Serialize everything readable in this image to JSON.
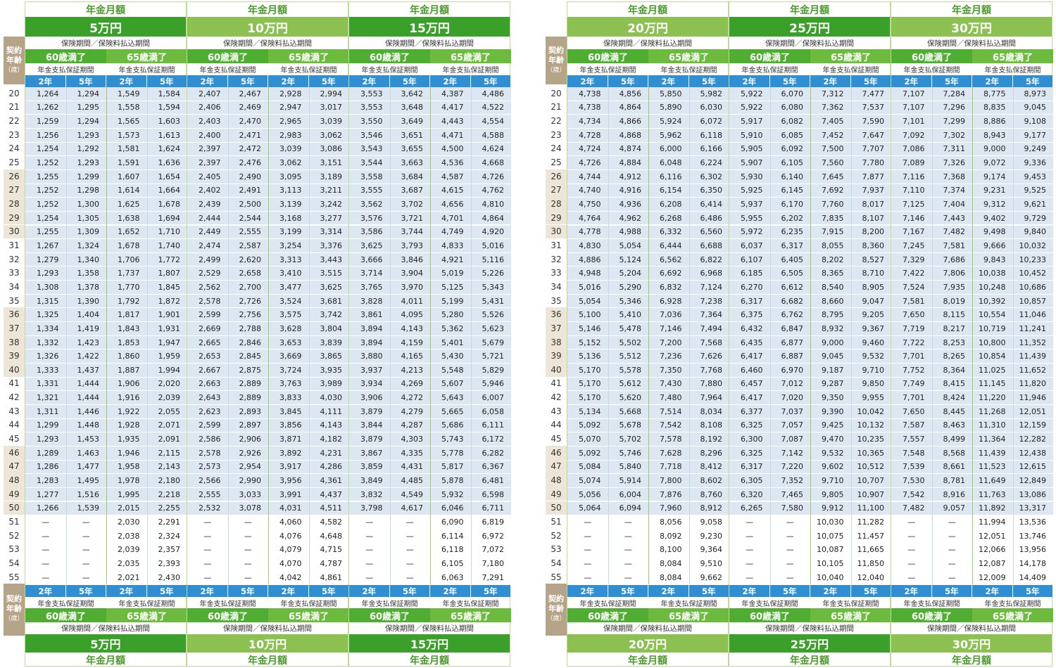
{
  "labels": {
    "header_top": "年金月額",
    "age_line1": "契約",
    "age_line2": "年齢",
    "age_line3": "（歳）",
    "insurance_period": "保険期間／保険料払込期間",
    "age60": "60歳満了",
    "age65": "65歳満了",
    "guarantee": "年金支払保証期間",
    "yr2": "2年",
    "yr5": "5年",
    "dash": "—"
  },
  "amounts": [
    "5万円",
    "10万円",
    "15万円",
    "20万円",
    "25万円",
    "30万円"
  ],
  "ages": [
    20,
    21,
    22,
    23,
    24,
    25,
    26,
    27,
    28,
    29,
    30,
    31,
    32,
    33,
    34,
    35,
    36,
    37,
    38,
    39,
    40,
    41,
    42,
    43,
    44,
    45,
    46,
    47,
    48,
    49,
    50,
    51,
    52,
    53,
    54,
    55
  ],
  "chart_data": {
    "type": "table",
    "columns_per_amount": [
      "60歳満了 2年",
      "60歳満了 5年",
      "65歳満了 2年",
      "65歳満了 5年"
    ],
    "rows": [
      [
        "1,264",
        "1,294",
        "1,549",
        "1,584",
        "2,407",
        "2,467",
        "2,928",
        "2,994",
        "3,553",
        "3,642",
        "4,387",
        "4,486",
        "4,738",
        "4,856",
        "5,850",
        "5,982",
        "5,922",
        "6,070",
        "7,312",
        "7,477",
        "7,107",
        "7,284",
        "8,775",
        "8,973"
      ],
      [
        "1,262",
        "1,295",
        "1,558",
        "1,594",
        "2,406",
        "2,469",
        "2,947",
        "3,017",
        "3,553",
        "3,648",
        "4,417",
        "4,522",
        "4,738",
        "4,864",
        "5,890",
        "6,030",
        "5,922",
        "6,080",
        "7,362",
        "7,537",
        "7,107",
        "7,296",
        "8,835",
        "9,045"
      ],
      [
        "1,259",
        "1,294",
        "1,565",
        "1,603",
        "2,403",
        "2,470",
        "2,965",
        "3,039",
        "3,550",
        "3,649",
        "4,443",
        "4,554",
        "4,734",
        "4,866",
        "5,924",
        "6,072",
        "5,917",
        "6,082",
        "7,405",
        "7,590",
        "7,101",
        "7,299",
        "8,886",
        "9,108"
      ],
      [
        "1,256",
        "1,293",
        "1,573",
        "1,613",
        "2,400",
        "2,471",
        "2,983",
        "3,062",
        "3,546",
        "3,651",
        "4,471",
        "4,588",
        "4,728",
        "4,868",
        "5,962",
        "6,118",
        "5,910",
        "6,085",
        "7,452",
        "7,647",
        "7,092",
        "7,302",
        "8,943",
        "9,177"
      ],
      [
        "1,254",
        "1,292",
        "1,581",
        "1,624",
        "2,397",
        "2,472",
        "3,039",
        "3,086",
        "3,543",
        "3,655",
        "4,500",
        "4,624",
        "4,724",
        "4,874",
        "6,000",
        "6,166",
        "5,905",
        "6,092",
        "7,500",
        "7,707",
        "7,086",
        "7,311",
        "9,000",
        "9,249"
      ],
      [
        "1,252",
        "1,293",
        "1,591",
        "1,636",
        "2,397",
        "2,476",
        "3,062",
        "3,151",
        "3,544",
        "3,663",
        "4,536",
        "4,668",
        "4,726",
        "4,884",
        "6,048",
        "6,224",
        "5,907",
        "6,105",
        "7,560",
        "7,780",
        "7,089",
        "7,326",
        "9,072",
        "9,336"
      ],
      [
        "1,255",
        "1,299",
        "1,607",
        "1,654",
        "2,405",
        "2,490",
        "3,095",
        "3,189",
        "3,558",
        "3,684",
        "4,587",
        "4,726",
        "4,744",
        "4,912",
        "6,116",
        "6,302",
        "5,930",
        "6,140",
        "7,645",
        "7,877",
        "7,116",
        "7,368",
        "9,174",
        "9,453"
      ],
      [
        "1,252",
        "1,298",
        "1,614",
        "1,664",
        "2,402",
        "2,491",
        "3,113",
        "3,211",
        "3,555",
        "3,687",
        "4,615",
        "4,762",
        "4,740",
        "4,916",
        "6,154",
        "6,350",
        "5,925",
        "6,145",
        "7,692",
        "7,937",
        "7,110",
        "7,374",
        "9,231",
        "9,525"
      ],
      [
        "1,252",
        "1,300",
        "1,625",
        "1,678",
        "2,439",
        "2,500",
        "3,139",
        "3,242",
        "3,562",
        "3,702",
        "4,656",
        "4,810",
        "4,750",
        "4,936",
        "6,208",
        "6,414",
        "5,937",
        "6,170",
        "7,760",
        "8,017",
        "7,125",
        "7,404",
        "9,312",
        "9,621"
      ],
      [
        "1,254",
        "1,305",
        "1,638",
        "1,694",
        "2,444",
        "2,544",
        "3,168",
        "3,277",
        "3,576",
        "3,721",
        "4,701",
        "4,864",
        "4,764",
        "4,962",
        "6,268",
        "6,486",
        "5,955",
        "6,202",
        "7,835",
        "8,107",
        "7,146",
        "7,443",
        "9,402",
        "9,729"
      ],
      [
        "1,255",
        "1,309",
        "1,652",
        "1,710",
        "2,449",
        "2,555",
        "3,199",
        "3,314",
        "3,586",
        "3,744",
        "4,749",
        "4,920",
        "4,778",
        "4,988",
        "6,332",
        "6,560",
        "5,972",
        "6,235",
        "7,915",
        "8,200",
        "7,167",
        "7,482",
        "9,498",
        "9,840"
      ],
      [
        "1,267",
        "1,324",
        "1,678",
        "1,740",
        "2,474",
        "2,587",
        "3,254",
        "3,376",
        "3,625",
        "3,793",
        "4,833",
        "5,016",
        "4,830",
        "5,054",
        "6,444",
        "6,688",
        "6,037",
        "6,317",
        "8,055",
        "8,360",
        "7,245",
        "7,581",
        "9,666",
        "10,032"
      ],
      [
        "1,279",
        "1,340",
        "1,706",
        "1,772",
        "2,499",
        "2,620",
        "3,313",
        "3,443",
        "3,666",
        "3,846",
        "4,921",
        "5,116",
        "4,886",
        "5,124",
        "6,562",
        "6,822",
        "6,107",
        "6,405",
        "8,202",
        "8,527",
        "7,329",
        "7,686",
        "9,843",
        "10,233"
      ],
      [
        "1,293",
        "1,358",
        "1,737",
        "1,807",
        "2,529",
        "2,658",
        "3,410",
        "3,515",
        "3,714",
        "3,904",
        "5,019",
        "5,226",
        "4,948",
        "5,204",
        "6,692",
        "6,968",
        "6,185",
        "6,505",
        "8,365",
        "8,710",
        "7,422",
        "7,806",
        "10,038",
        "10,452"
      ],
      [
        "1,308",
        "1,378",
        "1,770",
        "1,845",
        "2,562",
        "2,700",
        "3,477",
        "3,625",
        "3,765",
        "3,970",
        "5,125",
        "5,343",
        "5,016",
        "5,290",
        "6,832",
        "7,124",
        "6,270",
        "6,612",
        "8,540",
        "8,905",
        "7,524",
        "7,935",
        "10,248",
        "10,686"
      ],
      [
        "1,315",
        "1,390",
        "1,792",
        "1,872",
        "2,578",
        "2,726",
        "3,524",
        "3,681",
        "3,828",
        "4,011",
        "5,199",
        "5,431",
        "5,054",
        "5,346",
        "6,928",
        "7,238",
        "6,317",
        "6,682",
        "8,660",
        "9,047",
        "7,581",
        "8,019",
        "10,392",
        "10,857"
      ],
      [
        "1,325",
        "1,404",
        "1,817",
        "1,901",
        "2,599",
        "2,756",
        "3,575",
        "3,742",
        "3,861",
        "4,095",
        "5,280",
        "5,526",
        "5,100",
        "5,410",
        "7,036",
        "7,364",
        "6,375",
        "6,762",
        "8,795",
        "9,205",
        "7,650",
        "8,115",
        "10,554",
        "11,046"
      ],
      [
        "1,334",
        "1,419",
        "1,843",
        "1,931",
        "2,669",
        "2,788",
        "3,628",
        "3,804",
        "3,894",
        "4,143",
        "5,362",
        "5,623",
        "5,146",
        "5,478",
        "7,146",
        "7,494",
        "6,432",
        "6,847",
        "8,932",
        "9,367",
        "7,719",
        "8,217",
        "10,719",
        "11,241"
      ],
      [
        "1,332",
        "1,423",
        "1,853",
        "1,947",
        "2,665",
        "2,846",
        "3,653",
        "3,839",
        "3,894",
        "4,159",
        "5,401",
        "5,679",
        "5,152",
        "5,502",
        "7,200",
        "7,568",
        "6,435",
        "6,877",
        "9,000",
        "9,460",
        "7,722",
        "8,253",
        "10,800",
        "11,352"
      ],
      [
        "1,326",
        "1,422",
        "1,860",
        "1,959",
        "2,653",
        "2,845",
        "3,669",
        "3,865",
        "3,880",
        "4,165",
        "5,430",
        "5,721",
        "5,136",
        "5,512",
        "7,236",
        "7,626",
        "6,417",
        "6,887",
        "9,045",
        "9,532",
        "7,701",
        "8,265",
        "10,854",
        "11,439"
      ],
      [
        "1,333",
        "1,437",
        "1,887",
        "1,994",
        "2,667",
        "2,875",
        "3,724",
        "3,935",
        "3,937",
        "4,213",
        "5,548",
        "5,829",
        "5,170",
        "5,578",
        "7,350",
        "7,768",
        "6,460",
        "6,970",
        "9,187",
        "9,710",
        "7,752",
        "8,364",
        "11,025",
        "11,652"
      ],
      [
        "1,331",
        "1,444",
        "1,906",
        "2,020",
        "2,663",
        "2,889",
        "3,763",
        "3,989",
        "3,934",
        "4,269",
        "5,607",
        "5,946",
        "5,170",
        "5,612",
        "7,430",
        "7,880",
        "6,457",
        "7,012",
        "9,287",
        "9,850",
        "7,749",
        "8,415",
        "11,145",
        "11,820"
      ],
      [
        "1,321",
        "1,444",
        "1,916",
        "2,039",
        "2,643",
        "2,889",
        "3,833",
        "4,030",
        "3,906",
        "4,272",
        "5,643",
        "6,007",
        "5,170",
        "5,620",
        "7,480",
        "7,964",
        "6,417",
        "7,020",
        "9,350",
        "9,955",
        "7,701",
        "8,424",
        "11,220",
        "11,946"
      ],
      [
        "1,311",
        "1,446",
        "1,922",
        "2,055",
        "2,623",
        "2,893",
        "3,845",
        "4,111",
        "3,879",
        "4,279",
        "5,665",
        "6,058",
        "5,134",
        "5,668",
        "7,514",
        "8,034",
        "6,377",
        "7,037",
        "9,390",
        "10,042",
        "7,650",
        "8,445",
        "11,268",
        "12,051"
      ],
      [
        "1,299",
        "1,448",
        "1,928",
        "2,071",
        "2,599",
        "2,897",
        "3,856",
        "4,143",
        "3,844",
        "4,287",
        "5,686",
        "6,111",
        "5,092",
        "5,678",
        "7,542",
        "8,108",
        "6,325",
        "7,057",
        "9,425",
        "10,132",
        "7,587",
        "8,463",
        "11,310",
        "12,159"
      ],
      [
        "1,293",
        "1,453",
        "1,935",
        "2,091",
        "2,586",
        "2,906",
        "3,871",
        "4,182",
        "3,879",
        "4,303",
        "5,743",
        "6,172",
        "5,070",
        "5,702",
        "7,578",
        "8,192",
        "6,300",
        "7,087",
        "9,470",
        "10,235",
        "7,557",
        "8,499",
        "11,364",
        "12,282"
      ],
      [
        "1,289",
        "1,463",
        "1,946",
        "2,115",
        "2,578",
        "2,926",
        "3,892",
        "4,231",
        "3,867",
        "4,335",
        "5,778",
        "6,282",
        "5,092",
        "5,746",
        "7,628",
        "8,296",
        "6,325",
        "7,142",
        "9,532",
        "10,365",
        "7,548",
        "8,568",
        "11,439",
        "12,438"
      ],
      [
        "1,286",
        "1,477",
        "1,958",
        "2,143",
        "2,573",
        "2,954",
        "3,917",
        "4,286",
        "3,859",
        "4,431",
        "5,817",
        "6,367",
        "5,084",
        "5,840",
        "7,718",
        "8,412",
        "6,317",
        "7,220",
        "9,602",
        "10,512",
        "7,539",
        "8,661",
        "11,523",
        "12,615"
      ],
      [
        "1,283",
        "1,495",
        "1,978",
        "2,180",
        "2,566",
        "2,990",
        "3,956",
        "4,361",
        "3,849",
        "4,485",
        "5,878",
        "6,481",
        "5,074",
        "5,914",
        "7,800",
        "8,602",
        "6,305",
        "7,352",
        "9,710",
        "10,707",
        "7,530",
        "8,781",
        "11,649",
        "12,849"
      ],
      [
        "1,277",
        "1,516",
        "1,995",
        "2,218",
        "2,555",
        "3,033",
        "3,991",
        "4,437",
        "3,832",
        "4,549",
        "5,932",
        "6,598",
        "5,056",
        "6,004",
        "7,876",
        "8,760",
        "6,320",
        "7,465",
        "9,805",
        "10,907",
        "7,542",
        "8,916",
        "11,763",
        "13,086"
      ],
      [
        "1,266",
        "1,539",
        "2,015",
        "2,255",
        "2,532",
        "3,078",
        "4,031",
        "4,511",
        "3,798",
        "4,617",
        "6,046",
        "6,711",
        "5,064",
        "6,094",
        "7,960",
        "8,912",
        "6,265",
        "7,580",
        "9,912",
        "11,100",
        "7,482",
        "9,057",
        "11,892",
        "13,317"
      ],
      [
        "—",
        "—",
        "2,030",
        "2,291",
        "—",
        "—",
        "4,060",
        "4,582",
        "—",
        "—",
        "6,090",
        "6,819",
        "—",
        "—",
        "8,056",
        "9,058",
        "—",
        "—",
        "10,030",
        "11,282",
        "—",
        "—",
        "11,994",
        "13,536"
      ],
      [
        "—",
        "—",
        "2,038",
        "2,324",
        "—",
        "—",
        "4,076",
        "4,648",
        "—",
        "—",
        "6,114",
        "6,972",
        "—",
        "—",
        "8,092",
        "9,230",
        "—",
        "—",
        "10,075",
        "11,457",
        "—",
        "—",
        "12,051",
        "13,746"
      ],
      [
        "—",
        "—",
        "2,039",
        "2,357",
        "—",
        "—",
        "4,079",
        "4,715",
        "—",
        "—",
        "6,118",
        "7,072",
        "—",
        "—",
        "8,100",
        "9,364",
        "—",
        "—",
        "10,087",
        "11,665",
        "—",
        "—",
        "12,066",
        "13,956"
      ],
      [
        "—",
        "—",
        "2,035",
        "2,393",
        "—",
        "—",
        "4,070",
        "4,787",
        "—",
        "—",
        "6,105",
        "7,180",
        "—",
        "—",
        "8,084",
        "9,510",
        "—",
        "—",
        "10,105",
        "11,850",
        "—",
        "—",
        "12,087",
        "14,178"
      ],
      [
        "—",
        "—",
        "2,021",
        "2,430",
        "—",
        "—",
        "4,042",
        "4,861",
        "—",
        "—",
        "6,063",
        "7,291",
        "—",
        "—",
        "8,084",
        "9,662",
        "—",
        "—",
        "10,040",
        "12,040",
        "—",
        "—",
        "12,009",
        "14,409"
      ]
    ]
  },
  "colors": {
    "green_light": "#8cc152",
    "green_dark": "#3aa02a",
    "blue": "#2f8fd2",
    "age_tan": "#b5a487",
    "row_shade": "#dde7f1",
    "age_shade": "#ece5d8"
  }
}
